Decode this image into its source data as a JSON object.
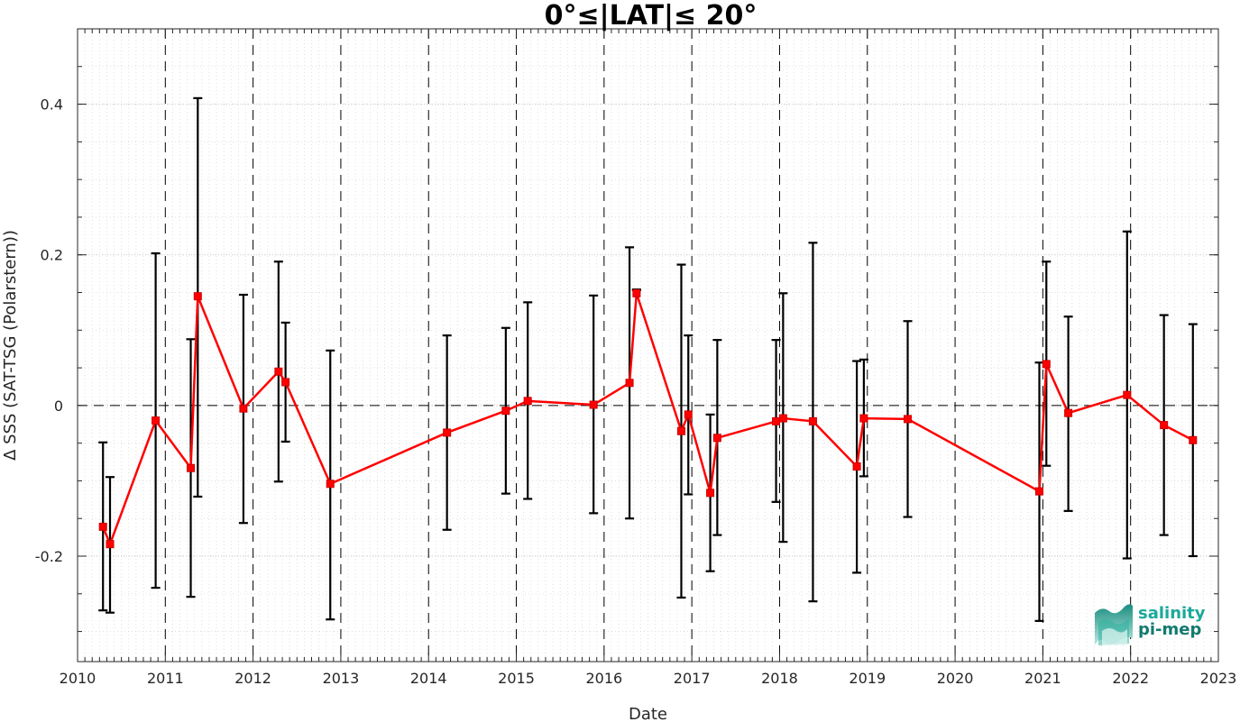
{
  "chart_data": {
    "type": "line",
    "title": "0°≤|LAT|≤ 20°",
    "xlabel": "Date",
    "ylabel": "Δ SSS (SAT-TSG (Polarstern))",
    "xlim": [
      2010,
      2023
    ],
    "ylim": [
      -0.34,
      0.5
    ],
    "xticks": [
      2010,
      2011,
      2012,
      2013,
      2014,
      2015,
      2016,
      2017,
      2018,
      2019,
      2020,
      2021,
      2022,
      2023
    ],
    "xtick_labels": [
      "2010",
      "2011",
      "2012",
      "2013",
      "2014",
      "2015",
      "2016",
      "2017",
      "2018",
      "2019",
      "2020",
      "2021",
      "2022",
      "2023"
    ],
    "yticks": [
      -0.2,
      0,
      0.2,
      0.4
    ],
    "ytick_labels": [
      "-0.2",
      "0",
      "0.2",
      "0.4"
    ],
    "grid": true,
    "year_dividers": [
      2011,
      2012,
      2013,
      2014,
      2015,
      2016,
      2017,
      2018,
      2019,
      2020,
      2021,
      2022
    ],
    "zero_line": 0,
    "series": [
      {
        "color": "#ff0000",
        "errorbar_color": "#000000",
        "marker": "square",
        "x": [
          2010.29,
          2010.37,
          2010.89,
          2011.29,
          2011.37,
          2011.89,
          2012.29,
          2012.37,
          2012.88,
          2014.21,
          2014.88,
          2015.13,
          2015.88,
          2016.29,
          2016.37,
          2016.88,
          2016.96,
          2017.21,
          2017.29,
          2017.96,
          2018.04,
          2018.38,
          2018.88,
          2018.96,
          2019.46,
          2020.96,
          2021.04,
          2021.29,
          2021.96,
          2022.38,
          2022.71
        ],
        "y": [
          -0.161,
          -0.184,
          -0.02,
          -0.083,
          0.145,
          -0.004,
          0.045,
          0.031,
          -0.104,
          -0.036,
          -0.007,
          0.006,
          0.001,
          0.03,
          0.149,
          -0.034,
          -0.012,
          -0.116,
          -0.043,
          -0.021,
          -0.017,
          -0.021,
          -0.081,
          -0.017,
          -0.018,
          -0.114,
          0.055,
          -0.01,
          0.014,
          -0.026,
          -0.046
        ],
        "err_lo": [
          -0.272,
          -0.275,
          -0.242,
          -0.254,
          -0.121,
          -0.156,
          -0.101,
          -0.048,
          -0.284,
          -0.165,
          -0.117,
          -0.124,
          -0.143,
          -0.15,
          0.153,
          -0.255,
          -0.118,
          -0.22,
          -0.172,
          -0.128,
          -0.181,
          -0.26,
          -0.222,
          -0.094,
          -0.148,
          -0.286,
          -0.08,
          -0.14,
          -0.203,
          -0.172,
          -0.2
        ],
        "err_hi": [
          -0.049,
          -0.095,
          0.202,
          0.088,
          0.408,
          0.147,
          0.191,
          0.11,
          0.073,
          0.093,
          0.103,
          0.137,
          0.146,
          0.21,
          0.154,
          0.187,
          0.093,
          -0.012,
          0.087,
          0.087,
          0.149,
          0.216,
          0.059,
          0.061,
          0.112,
          0.057,
          0.191,
          0.118,
          0.231,
          0.12,
          0.108
        ]
      }
    ]
  },
  "logo": {
    "line1": "salinity",
    "line2": "pi-mep",
    "color1": "#1aa99a",
    "color2": "#137a70"
  }
}
